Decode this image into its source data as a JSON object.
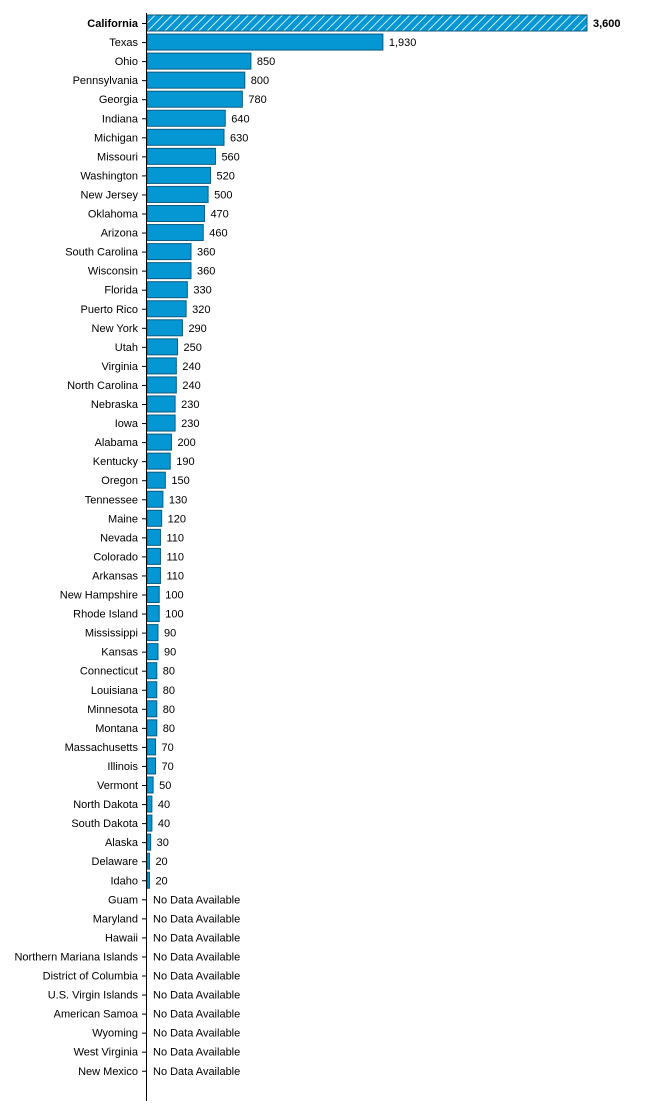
{
  "chart_data": {
    "type": "bar",
    "orientation": "horizontal",
    "title": "",
    "xlabel": "",
    "ylabel": "",
    "xlim": [
      0,
      3600
    ],
    "grid": false,
    "highlight": "California",
    "no_data_label": "No Data Available",
    "colors": {
      "bar": "#0497d4",
      "bar_border": "#0a5a80",
      "hatch": "#ffffff",
      "axis": "#000000"
    },
    "categories": [
      "California",
      "Texas",
      "Ohio",
      "Pennsylvania",
      "Georgia",
      "Indiana",
      "Michigan",
      "Missouri",
      "Washington",
      "New Jersey",
      "Oklahoma",
      "Arizona",
      "South Carolina",
      "Wisconsin",
      "Florida",
      "Puerto Rico",
      "New York",
      "Utah",
      "Virginia",
      "North Carolina",
      "Nebraska",
      "Iowa",
      "Alabama",
      "Kentucky",
      "Oregon",
      "Tennessee",
      "Maine",
      "Nevada",
      "Colorado",
      "Arkansas",
      "New Hampshire",
      "Rhode Island",
      "Mississippi",
      "Kansas",
      "Connecticut",
      "Louisiana",
      "Minnesota",
      "Montana",
      "Massachusetts",
      "Illinois",
      "Vermont",
      "North Dakota",
      "South Dakota",
      "Alaska",
      "Delaware",
      "Idaho",
      "Guam",
      "Maryland",
      "Hawaii",
      "Northern Mariana Islands",
      "District of Columbia",
      "U.S. Virgin Islands",
      "American Samoa",
      "Wyoming",
      "West Virginia",
      "New Mexico"
    ],
    "values": [
      3600,
      1930,
      850,
      800,
      780,
      640,
      630,
      560,
      520,
      500,
      470,
      460,
      360,
      360,
      330,
      320,
      290,
      250,
      240,
      240,
      230,
      230,
      200,
      190,
      150,
      130,
      120,
      110,
      110,
      110,
      100,
      100,
      90,
      90,
      80,
      80,
      80,
      80,
      70,
      70,
      50,
      40,
      40,
      30,
      20,
      20,
      null,
      null,
      null,
      null,
      null,
      null,
      null,
      null,
      null,
      null
    ],
    "value_labels": [
      "3,600",
      "1,930",
      "850",
      "800",
      "780",
      "640",
      "630",
      "560",
      "520",
      "500",
      "470",
      "460",
      "360",
      "360",
      "330",
      "320",
      "290",
      "250",
      "240",
      "240",
      "230",
      "230",
      "200",
      "190",
      "150",
      "130",
      "120",
      "110",
      "110",
      "110",
      "100",
      "100",
      "90",
      "90",
      "80",
      "80",
      "80",
      "80",
      "70",
      "70",
      "50",
      "40",
      "40",
      "30",
      "20",
      "20",
      "No Data Available",
      "No Data Available",
      "No Data Available",
      "No Data Available",
      "No Data Available",
      "No Data Available",
      "No Data Available",
      "No Data Available",
      "No Data Available",
      "No Data Available"
    ]
  }
}
